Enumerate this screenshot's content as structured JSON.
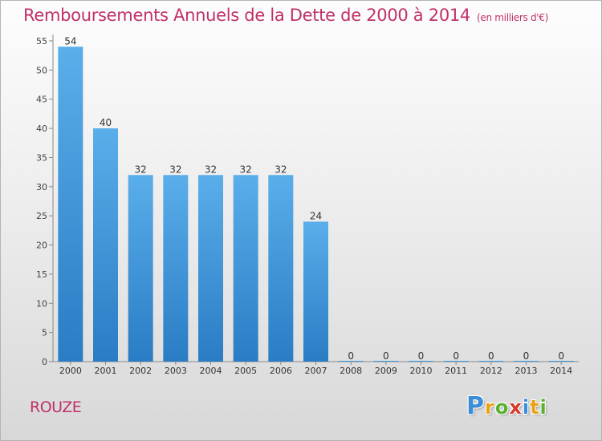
{
  "header": {
    "title": "Remboursements Annuels de la Dette de 2000 à 2014",
    "unit": "(en milliers d'€)"
  },
  "footer": {
    "commune": "ROUZE"
  },
  "logo": {
    "letters": [
      "P",
      "r",
      "o",
      "x",
      "i",
      "t",
      "i"
    ],
    "colors": [
      "#3a8ed8",
      "#e8a21a",
      "#5ab032",
      "#d63a2a",
      "#3a8ed8",
      "#e8a21a",
      "#5ab032"
    ]
  },
  "chart_data": {
    "type": "bar",
    "categories": [
      "2000",
      "2001",
      "2002",
      "2003",
      "2004",
      "2005",
      "2006",
      "2007",
      "2008",
      "2009",
      "2010",
      "2011",
      "2012",
      "2013",
      "2014"
    ],
    "values": [
      54,
      40,
      32,
      32,
      32,
      32,
      32,
      24,
      0,
      0,
      0,
      0,
      0,
      0,
      0
    ],
    "title": "Remboursements Annuels de la Dette de 2000 à 2014",
    "xlabel": "",
    "ylabel": "",
    "ylim": [
      0,
      55
    ],
    "yticks": [
      0,
      5,
      10,
      15,
      20,
      25,
      30,
      35,
      40,
      45,
      50,
      55
    ],
    "grid": false,
    "bar_color": "#3f97dc"
  }
}
